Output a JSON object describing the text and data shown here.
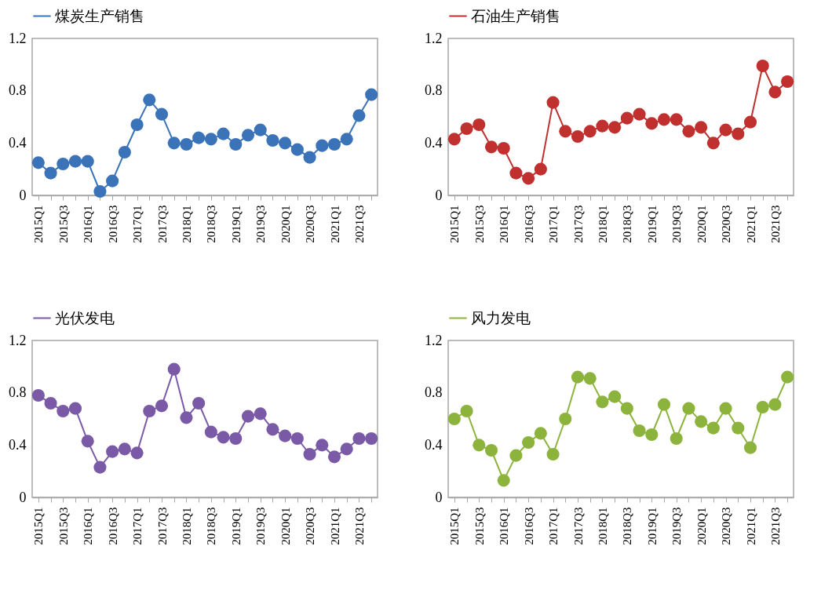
{
  "chart_data": [
    {
      "type": "line",
      "categories": [
        "2015Q1",
        null,
        "2015Q3",
        null,
        "2016Q1",
        null,
        "2016Q3",
        null,
        "2017Q1",
        null,
        "2017Q3",
        null,
        "2018Q1",
        null,
        "2018Q3",
        null,
        "2019Q1",
        null,
        "2019Q3",
        null,
        "2020Q1",
        null,
        "2020Q3",
        null,
        "2021Q1",
        null,
        "2021Q3",
        null
      ],
      "series": [
        {
          "name": "煤炭生产销售",
          "color": "#3b73b9",
          "values": [
            0.25,
            0.17,
            0.24,
            0.26,
            0.26,
            0.03,
            0.11,
            0.33,
            0.54,
            0.73,
            0.62,
            0.4,
            0.39,
            0.44,
            0.43,
            0.47,
            0.39,
            0.46,
            0.5,
            0.42,
            0.4,
            0.35,
            0.29,
            0.38,
            0.39,
            0.43,
            0.61,
            0.77
          ]
        }
      ],
      "ylim": [
        0,
        1.2
      ],
      "yticks": [
        0,
        0.4,
        0.8,
        1.2
      ],
      "marker": "circle",
      "legend": "top",
      "grid": false
    },
    {
      "type": "line",
      "categories": [
        "2015Q1",
        null,
        "2015Q3",
        null,
        "2016Q1",
        null,
        "2016Q3",
        null,
        "2017Q1",
        null,
        "2017Q3",
        null,
        "2018Q1",
        null,
        "2018Q3",
        null,
        "2019Q1",
        null,
        "2019Q3",
        null,
        "2020Q1",
        null,
        "2020Q3",
        null,
        "2021Q1",
        null,
        "2021Q3",
        null
      ],
      "series": [
        {
          "name": "石油生产销售",
          "color": "#c0302e",
          "values": [
            0.43,
            0.51,
            0.54,
            0.37,
            0.36,
            0.17,
            0.13,
            0.2,
            0.71,
            0.49,
            0.45,
            0.49,
            0.53,
            0.52,
            0.59,
            0.62,
            0.55,
            0.58,
            0.58,
            0.49,
            0.52,
            0.4,
            0.5,
            0.47,
            0.56,
            0.99,
            0.79,
            0.87
          ]
        }
      ],
      "ylim": [
        0,
        1.2
      ],
      "yticks": [
        0,
        0.4,
        0.8,
        1.2
      ],
      "marker": "circle",
      "legend": "top",
      "grid": false
    },
    {
      "type": "line",
      "categories": [
        "2015Q1",
        null,
        "2015Q3",
        null,
        "2016Q1",
        null,
        "2016Q3",
        null,
        "2017Q1",
        null,
        "2017Q3",
        null,
        "2018Q1",
        null,
        "2018Q3",
        null,
        "2019Q1",
        null,
        "2019Q3",
        null,
        "2020Q1",
        null,
        "2020Q3",
        null,
        "2021Q1",
        null,
        "2021Q3",
        null
      ],
      "series": [
        {
          "name": "光伏发电",
          "color": "#7a5aa6",
          "values": [
            0.78,
            0.72,
            0.66,
            0.68,
            0.43,
            0.23,
            0.35,
            0.37,
            0.34,
            0.66,
            0.7,
            0.98,
            0.61,
            0.72,
            0.5,
            0.46,
            0.45,
            0.62,
            0.64,
            0.52,
            0.47,
            0.45,
            0.33,
            0.4,
            0.31,
            0.37,
            0.45,
            0.45
          ]
        }
      ],
      "ylim": [
        0,
        1.2
      ],
      "yticks": [
        0,
        0.4,
        0.8,
        1.2
      ],
      "marker": "circle",
      "legend": "top",
      "grid": false
    },
    {
      "type": "line",
      "categories": [
        "2015Q1",
        null,
        "2015Q3",
        null,
        "2016Q1",
        null,
        "2016Q3",
        null,
        "2017Q1",
        null,
        "2017Q3",
        null,
        "2018Q1",
        null,
        "2018Q3",
        null,
        "2019Q1",
        null,
        "2019Q3",
        null,
        "2020Q1",
        null,
        "2020Q3",
        null,
        "2021Q1",
        null,
        "2021Q3",
        null
      ],
      "series": [
        {
          "name": "风力发电",
          "color": "#8cb43c",
          "values": [
            0.6,
            0.66,
            0.4,
            0.36,
            0.13,
            0.32,
            0.42,
            0.49,
            0.33,
            0.6,
            0.92,
            0.91,
            0.73,
            0.77,
            0.68,
            0.51,
            0.48,
            0.71,
            0.45,
            0.68,
            0.58,
            0.53,
            0.68,
            0.53,
            0.38,
            0.69,
            0.71,
            0.92
          ]
        }
      ],
      "ylim": [
        0,
        1.2
      ],
      "yticks": [
        0,
        0.4,
        0.8,
        1.2
      ],
      "marker": "circle",
      "legend": "top",
      "grid": false
    }
  ]
}
